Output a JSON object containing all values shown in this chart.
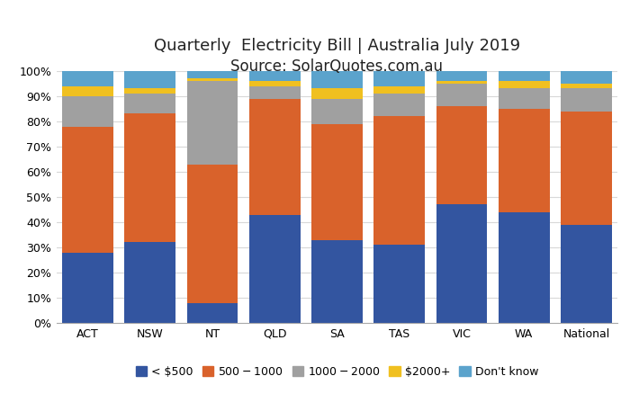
{
  "title": "Quarterly  Electricity Bill | Australia July 2019",
  "subtitle": "Source: SolarQuotes.com.au",
  "categories": [
    "ACT",
    "NSW",
    "NT",
    "QLD",
    "SA",
    "TAS",
    "VIC",
    "WA",
    "National"
  ],
  "series": {
    "< $500": [
      28,
      32,
      8,
      43,
      33,
      31,
      47,
      44,
      39
    ],
    "$500 - $1000": [
      50,
      51,
      55,
      46,
      46,
      51,
      39,
      41,
      45
    ],
    "$1000- $2000": [
      12,
      8,
      33,
      5,
      10,
      9,
      9,
      8,
      9
    ],
    "$2000+": [
      4,
      2,
      1,
      2,
      4,
      3,
      1,
      3,
      2
    ],
    "Don't know": [
      6,
      7,
      3,
      4,
      7,
      6,
      4,
      4,
      5
    ]
  },
  "colors": {
    "< $500": "#3355A0",
    "$500 - $1000": "#D9622B",
    "$1000- $2000": "#A0A0A0",
    "$2000+": "#F0C020",
    "Don't know": "#5BA3CC"
  },
  "ylim": [
    0,
    100
  ],
  "yticks": [
    0,
    10,
    20,
    30,
    40,
    50,
    60,
    70,
    80,
    90,
    100
  ],
  "ytick_labels": [
    "0%",
    "10%",
    "20%",
    "30%",
    "40%",
    "50%",
    "60%",
    "70%",
    "80%",
    "90%",
    "100%"
  ],
  "bar_width": 0.82,
  "background_color": "#FFFFFF",
  "title_fontsize": 13,
  "subtitle_fontsize": 12,
  "legend_fontsize": 9,
  "tick_fontsize": 9,
  "grid_color": "#D8D8D8"
}
